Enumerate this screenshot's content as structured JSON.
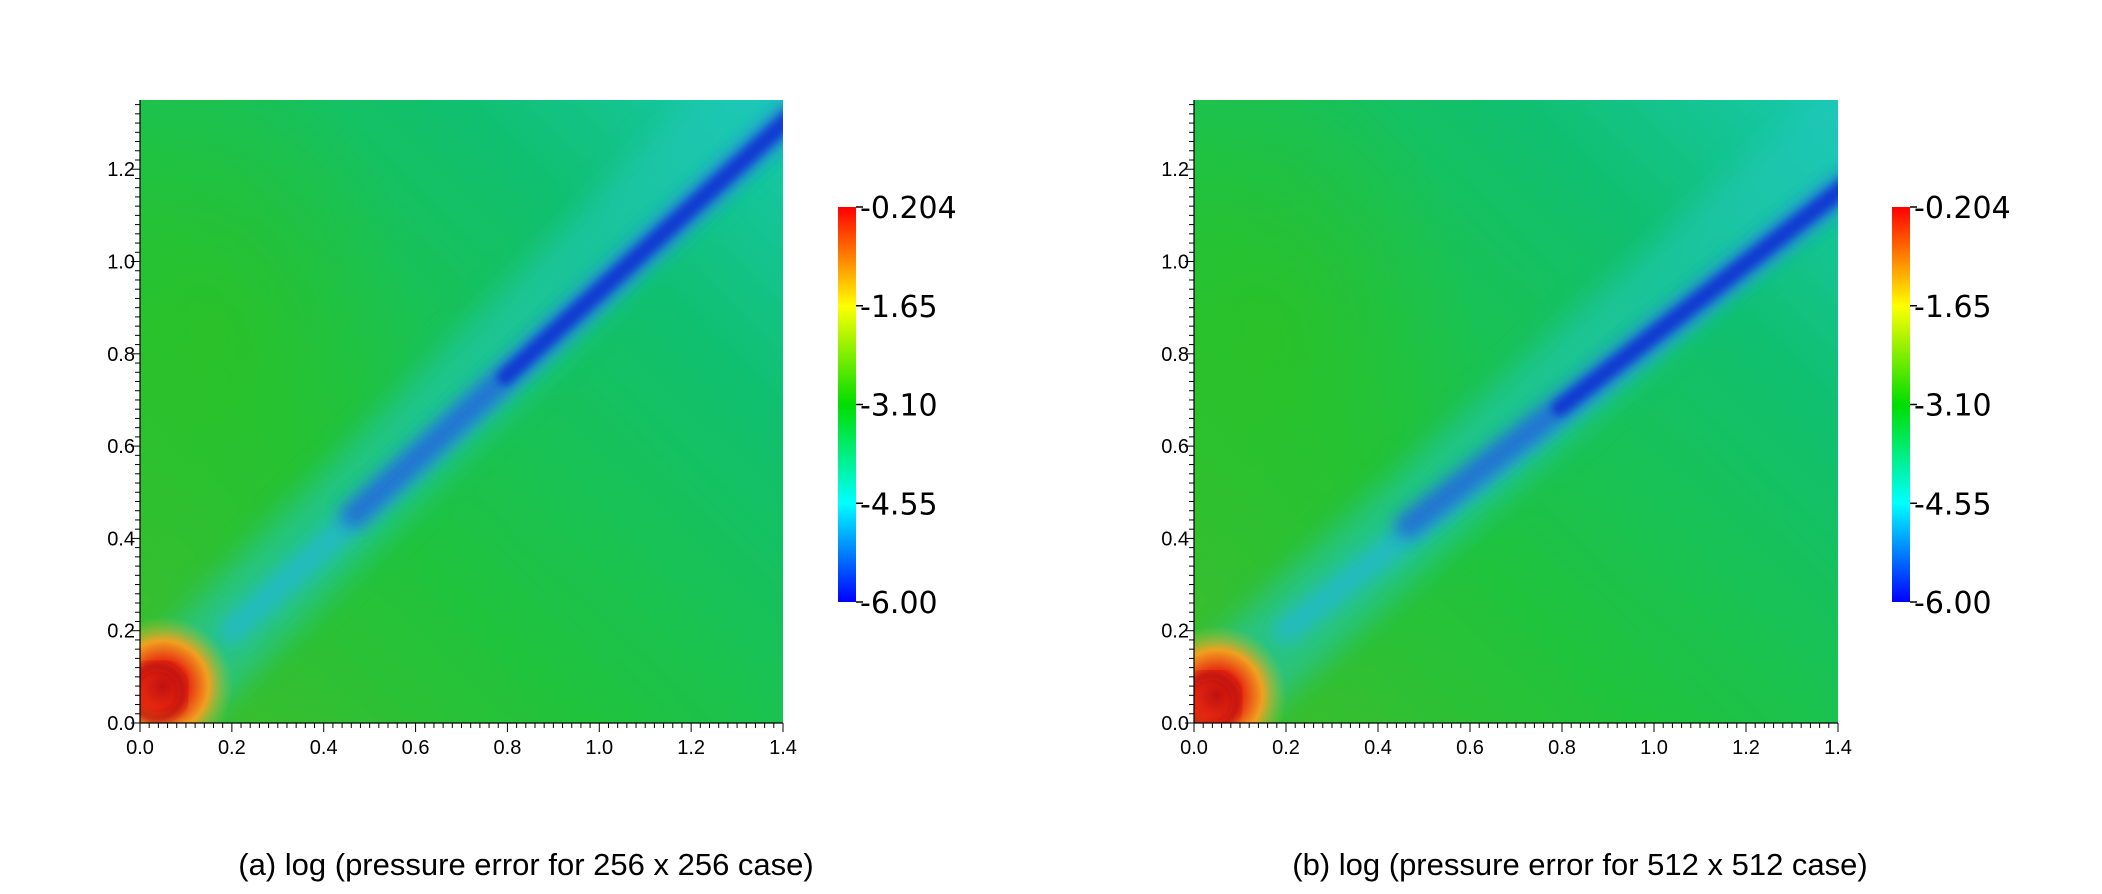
{
  "chart_data": [
    {
      "type": "heatmap",
      "caption": "(a) log (pressure error for 256 x 256 case)",
      "xlim": [
        0.0,
        1.4
      ],
      "ylim": [
        0.0,
        1.35
      ],
      "x_ticks": [
        "0.0",
        "0.2",
        "0.4",
        "0.6",
        "0.8",
        "1.0",
        "1.2",
        "1.4"
      ],
      "y_ticks": [
        "0.0",
        "0.2",
        "0.4",
        "0.6",
        "0.8",
        "1.0",
        "1.2"
      ],
      "colorbar": {
        "range": [
          -6.0,
          -0.204
        ],
        "tick_labels": [
          "-0.204",
          "-1.65",
          "-3.10",
          "-4.55",
          "-6.00"
        ],
        "colormap": [
          "#ff0000",
          "#ffff00",
          "#00dd00",
          "#00ffff",
          "#0000ff"
        ]
      },
      "field": {
        "background_value": -3.1,
        "background_color": "#22c25c",
        "low_error_band": {
          "from": [
            0.3,
            0.3
          ],
          "to": [
            1.4,
            1.3
          ],
          "min_value": -6.0,
          "color": "#1030d0"
        },
        "high_error_corner": {
          "at": [
            0.05,
            0.08
          ],
          "max_value": -0.204,
          "color": "#e02010"
        }
      }
    },
    {
      "type": "heatmap",
      "caption": "(b) log (pressure error for 512 x 512 case)",
      "xlim": [
        0.0,
        1.4
      ],
      "ylim": [
        0.0,
        1.35
      ],
      "x_ticks": [
        "0.0",
        "0.2",
        "0.4",
        "0.6",
        "0.8",
        "1.0",
        "1.2",
        "1.4"
      ],
      "y_ticks": [
        "0.0",
        "0.2",
        "0.4",
        "0.6",
        "0.8",
        "1.0",
        "1.2"
      ],
      "colorbar": {
        "range": [
          -6.0,
          -0.204
        ],
        "tick_labels": [
          "-0.204",
          "-1.65",
          "-3.10",
          "-4.55",
          "-6.00"
        ],
        "colormap": [
          "#ff0000",
          "#ffff00",
          "#00dd00",
          "#00ffff",
          "#0000ff"
        ]
      },
      "field": {
        "background_value": -3.1,
        "background_color": "#22c25c",
        "low_error_band": {
          "from": [
            0.3,
            0.3
          ],
          "to": [
            1.4,
            1.15
          ],
          "min_value": -6.0,
          "color": "#1030d0"
        },
        "high_error_corner": {
          "at": [
            0.05,
            0.06
          ],
          "max_value": -0.204,
          "color": "#e02010"
        }
      }
    }
  ]
}
